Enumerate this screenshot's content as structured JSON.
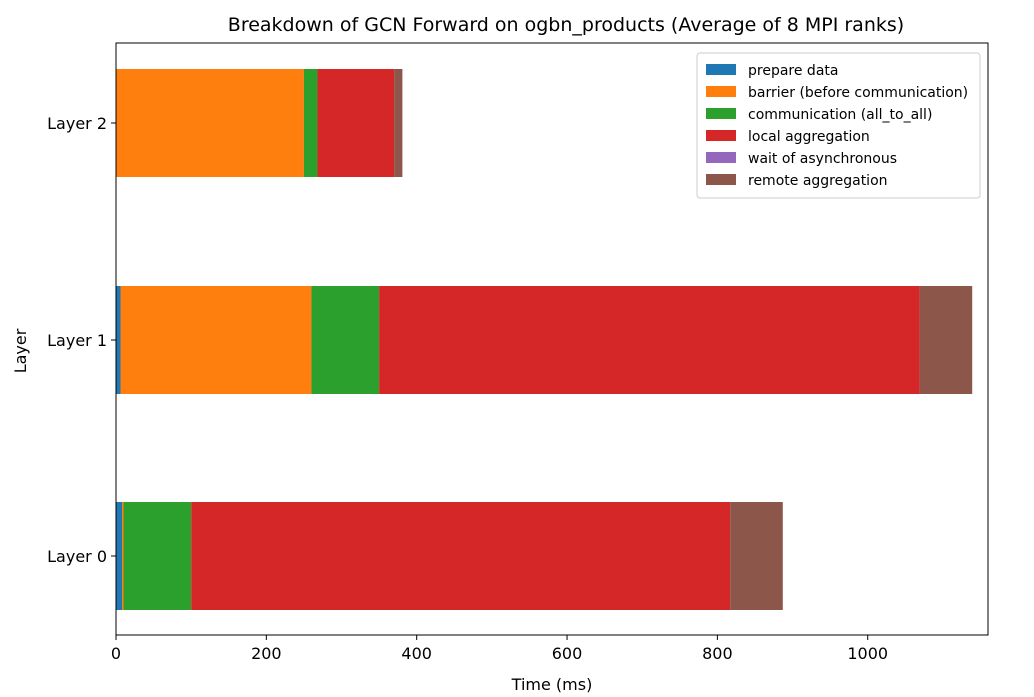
{
  "chart_data": {
    "type": "bar",
    "orientation": "horizontal",
    "stacked": true,
    "title": "Breakdown of GCN Forward on ogbn_products (Average of 8 MPI ranks)",
    "xlabel": "Time (ms)",
    "ylabel": "Layer",
    "xlim": [
      0,
      1160
    ],
    "xticks": [
      0,
      200,
      400,
      600,
      800,
      1000
    ],
    "grid": false,
    "legend_position": "top-right",
    "categories": [
      "Layer 0",
      "Layer 1",
      "Layer 2"
    ],
    "series": [
      {
        "name": "prepare data",
        "color": "#1f77b4",
        "values": [
          8,
          6,
          0
        ]
      },
      {
        "name": "barrier (before communication)",
        "color": "#ff7f0e",
        "values": [
          2,
          254,
          250
        ]
      },
      {
        "name": "communication (all_to_all)",
        "color": "#2ca02c",
        "values": [
          90,
          90,
          18
        ]
      },
      {
        "name": "local aggregation",
        "color": "#d62728",
        "values": [
          717,
          719,
          102
        ]
      },
      {
        "name": "wait of asynchronous",
        "color": "#9467bd",
        "values": [
          0,
          0,
          0
        ]
      },
      {
        "name": "remote aggregation",
        "color": "#8c564b",
        "values": [
          70,
          70,
          11
        ]
      }
    ]
  }
}
